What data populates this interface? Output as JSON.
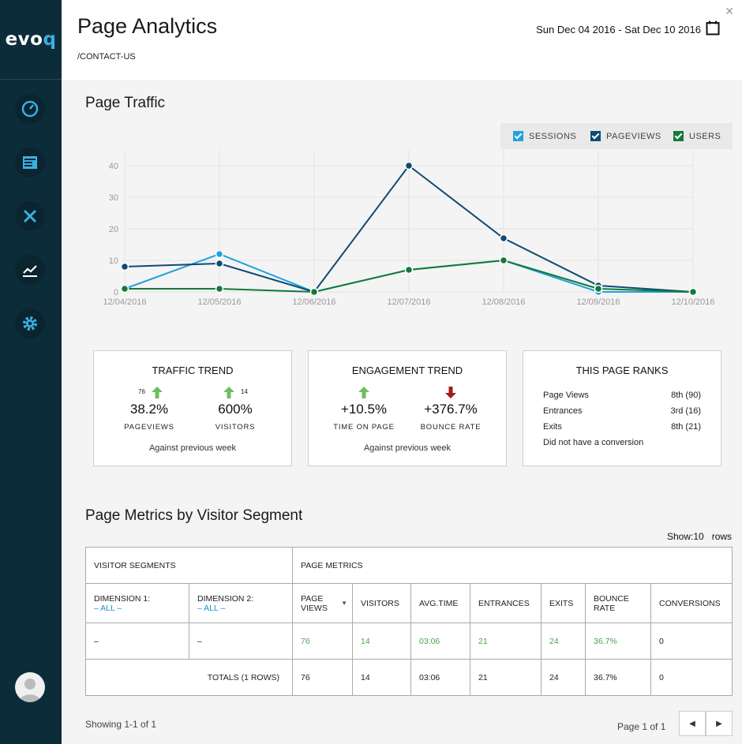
{
  "sidebar": {
    "logo_prefix": "evo",
    "logo_q": "q",
    "items": [
      "dashboard-icon",
      "content-icon",
      "tools-icon",
      "analytics-icon",
      "settings-icon"
    ]
  },
  "header": {
    "title": "Page Analytics",
    "path": "/CONTACT-US",
    "date_range": "Sun Dec 04 2016 - Sat Dec 10 2016"
  },
  "traffic": {
    "heading": "Page Traffic",
    "legend": [
      {
        "label": "SESSIONS",
        "color": "#1fa3dc"
      },
      {
        "label": "PAGEVIEWS",
        "color": "#0e4a74"
      },
      {
        "label": "USERS",
        "color": "#12793b"
      }
    ]
  },
  "chart_data": {
    "type": "line",
    "categories": [
      "12/04/2016",
      "12/05/2016",
      "12/06/2016",
      "12/07/2016",
      "12/08/2016",
      "12/09/2016",
      "12/10/2016"
    ],
    "yticks": [
      0,
      10,
      20,
      30,
      40
    ],
    "ylim": [
      0,
      45
    ],
    "series": [
      {
        "name": "SESSIONS",
        "color": "#1fa3dc",
        "values": [
          1,
          12,
          0,
          7,
          10,
          0,
          0
        ]
      },
      {
        "name": "PAGEVIEWS",
        "color": "#0e4a74",
        "values": [
          8,
          9,
          0,
          40,
          17,
          2,
          0
        ]
      },
      {
        "name": "USERS",
        "color": "#12793b",
        "values": [
          1,
          1,
          0,
          7,
          10,
          1,
          0
        ]
      }
    ]
  },
  "traffic_trend": {
    "title": "TRAFFIC TREND",
    "pv_small": "76",
    "pv_value": "38.2%",
    "pv_label": "PAGEVIEWS",
    "vis_small": "14",
    "vis_value": "600%",
    "vis_label": "VISITORS",
    "note": "Against previous week"
  },
  "engagement_trend": {
    "title": "ENGAGEMENT TREND",
    "tp_value": "+10.5%",
    "tp_label": "TIME ON PAGE",
    "br_value": "+376.7%",
    "br_label": "BOUNCE RATE",
    "note": "Against previous week"
  },
  "ranks": {
    "title": "THIS PAGE RANKS",
    "rows": [
      {
        "k": "Page Views",
        "v": "8th (90)"
      },
      {
        "k": "Entrances",
        "v": "3rd (16)"
      },
      {
        "k": "Exits",
        "v": "8th (21)"
      }
    ],
    "note": "Did not have a conversion"
  },
  "segments": {
    "heading": "Page Metrics by Visitor Segment",
    "show": "Show:10   rows",
    "group1": "VISITOR SEGMENTS",
    "group2": "PAGE METRICS",
    "dim1": "DIMENSION 1:",
    "dim2": "DIMENSION 2:",
    "all": "– ALL –",
    "cols": [
      "PAGE VIEWS",
      "VISITORS",
      "AVG.TIME",
      "ENTRANCES",
      "EXITS",
      "BOUNCE RATE",
      "CONVERSIONS"
    ],
    "row": {
      "d1": "–",
      "d2": "–",
      "vals": [
        "76",
        "14",
        "03:06",
        "21",
        "24",
        "36.7%",
        "0"
      ]
    },
    "totals_label": "TOTALS (1 ROWS)",
    "totals": [
      "76",
      "14",
      "03:06",
      "21",
      "24",
      "36.7%",
      "0"
    ],
    "showing": "Showing 1-1 of 1",
    "page": "Page 1 of 1"
  }
}
